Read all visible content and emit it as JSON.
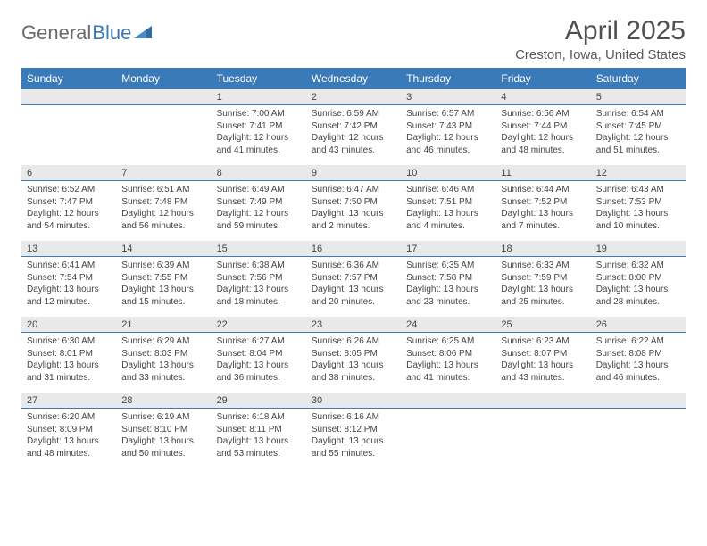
{
  "brand": {
    "part1": "General",
    "part2": "Blue"
  },
  "title": "April 2025",
  "location": "Creston, Iowa, United States",
  "colors": {
    "header_bg": "#3a7ab8",
    "daynum_bg": "#e9e9e9",
    "border": "#3a7ab8"
  },
  "weekdays": [
    "Sunday",
    "Monday",
    "Tuesday",
    "Wednesday",
    "Thursday",
    "Friday",
    "Saturday"
  ],
  "weeks": [
    [
      null,
      null,
      {
        "n": "1",
        "sr": "7:00 AM",
        "ss": "7:41 PM",
        "dl": "12 hours and 41 minutes."
      },
      {
        "n": "2",
        "sr": "6:59 AM",
        "ss": "7:42 PM",
        "dl": "12 hours and 43 minutes."
      },
      {
        "n": "3",
        "sr": "6:57 AM",
        "ss": "7:43 PM",
        "dl": "12 hours and 46 minutes."
      },
      {
        "n": "4",
        "sr": "6:56 AM",
        "ss": "7:44 PM",
        "dl": "12 hours and 48 minutes."
      },
      {
        "n": "5",
        "sr": "6:54 AM",
        "ss": "7:45 PM",
        "dl": "12 hours and 51 minutes."
      }
    ],
    [
      {
        "n": "6",
        "sr": "6:52 AM",
        "ss": "7:47 PM",
        "dl": "12 hours and 54 minutes."
      },
      {
        "n": "7",
        "sr": "6:51 AM",
        "ss": "7:48 PM",
        "dl": "12 hours and 56 minutes."
      },
      {
        "n": "8",
        "sr": "6:49 AM",
        "ss": "7:49 PM",
        "dl": "12 hours and 59 minutes."
      },
      {
        "n": "9",
        "sr": "6:47 AM",
        "ss": "7:50 PM",
        "dl": "13 hours and 2 minutes."
      },
      {
        "n": "10",
        "sr": "6:46 AM",
        "ss": "7:51 PM",
        "dl": "13 hours and 4 minutes."
      },
      {
        "n": "11",
        "sr": "6:44 AM",
        "ss": "7:52 PM",
        "dl": "13 hours and 7 minutes."
      },
      {
        "n": "12",
        "sr": "6:43 AM",
        "ss": "7:53 PM",
        "dl": "13 hours and 10 minutes."
      }
    ],
    [
      {
        "n": "13",
        "sr": "6:41 AM",
        "ss": "7:54 PM",
        "dl": "13 hours and 12 minutes."
      },
      {
        "n": "14",
        "sr": "6:39 AM",
        "ss": "7:55 PM",
        "dl": "13 hours and 15 minutes."
      },
      {
        "n": "15",
        "sr": "6:38 AM",
        "ss": "7:56 PM",
        "dl": "13 hours and 18 minutes."
      },
      {
        "n": "16",
        "sr": "6:36 AM",
        "ss": "7:57 PM",
        "dl": "13 hours and 20 minutes."
      },
      {
        "n": "17",
        "sr": "6:35 AM",
        "ss": "7:58 PM",
        "dl": "13 hours and 23 minutes."
      },
      {
        "n": "18",
        "sr": "6:33 AM",
        "ss": "7:59 PM",
        "dl": "13 hours and 25 minutes."
      },
      {
        "n": "19",
        "sr": "6:32 AM",
        "ss": "8:00 PM",
        "dl": "13 hours and 28 minutes."
      }
    ],
    [
      {
        "n": "20",
        "sr": "6:30 AM",
        "ss": "8:01 PM",
        "dl": "13 hours and 31 minutes."
      },
      {
        "n": "21",
        "sr": "6:29 AM",
        "ss": "8:03 PM",
        "dl": "13 hours and 33 minutes."
      },
      {
        "n": "22",
        "sr": "6:27 AM",
        "ss": "8:04 PM",
        "dl": "13 hours and 36 minutes."
      },
      {
        "n": "23",
        "sr": "6:26 AM",
        "ss": "8:05 PM",
        "dl": "13 hours and 38 minutes."
      },
      {
        "n": "24",
        "sr": "6:25 AM",
        "ss": "8:06 PM",
        "dl": "13 hours and 41 minutes."
      },
      {
        "n": "25",
        "sr": "6:23 AM",
        "ss": "8:07 PM",
        "dl": "13 hours and 43 minutes."
      },
      {
        "n": "26",
        "sr": "6:22 AM",
        "ss": "8:08 PM",
        "dl": "13 hours and 46 minutes."
      }
    ],
    [
      {
        "n": "27",
        "sr": "6:20 AM",
        "ss": "8:09 PM",
        "dl": "13 hours and 48 minutes."
      },
      {
        "n": "28",
        "sr": "6:19 AM",
        "ss": "8:10 PM",
        "dl": "13 hours and 50 minutes."
      },
      {
        "n": "29",
        "sr": "6:18 AM",
        "ss": "8:11 PM",
        "dl": "13 hours and 53 minutes."
      },
      {
        "n": "30",
        "sr": "6:16 AM",
        "ss": "8:12 PM",
        "dl": "13 hours and 55 minutes."
      },
      null,
      null,
      null
    ]
  ],
  "labels": {
    "sunrise": "Sunrise:",
    "sunset": "Sunset:",
    "daylight": "Daylight:"
  }
}
